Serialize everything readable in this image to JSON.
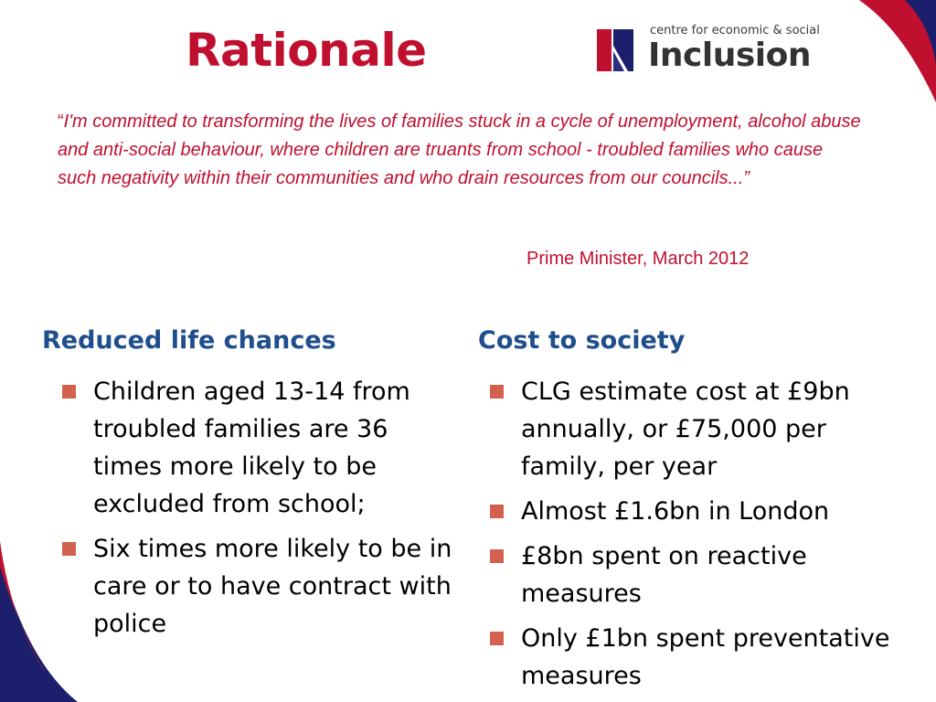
{
  "slide": {
    "title": "Rationale",
    "logo": {
      "tagline": "centre for economic & social",
      "name": "Inclusion"
    },
    "quote": {
      "open_mark": "“",
      "text": "I'm committed to transforming the lives of families stuck in a cycle of unemployment, alcohol abuse and anti-social behaviour, where children are truants from school - troubled families who cause such negativity within their communities and who drain resources from our councils...”",
      "attribution": "Prime Minister, March 2012"
    },
    "left_column": {
      "heading": "Reduced life chances",
      "bullets": [
        "Children aged 13-14 from troubled families are 36 times more likely to be excluded from school;",
        "Six times more likely to be in care or to have contract with police"
      ]
    },
    "right_column": {
      "heading": "Cost to society",
      "bullets": [
        "CLG estimate cost at £9bn annually, or £75,000 per family, per year",
        "Almost £1.6bn in London",
        "£8bn spent on reactive measures",
        "Only £1bn spent preventative measures"
      ]
    },
    "colors": {
      "accent_red": "#c0102f",
      "heading_blue": "#1f4e8c",
      "bullet": "#d2614f",
      "swoosh_navy": "#1c1f6b"
    }
  }
}
